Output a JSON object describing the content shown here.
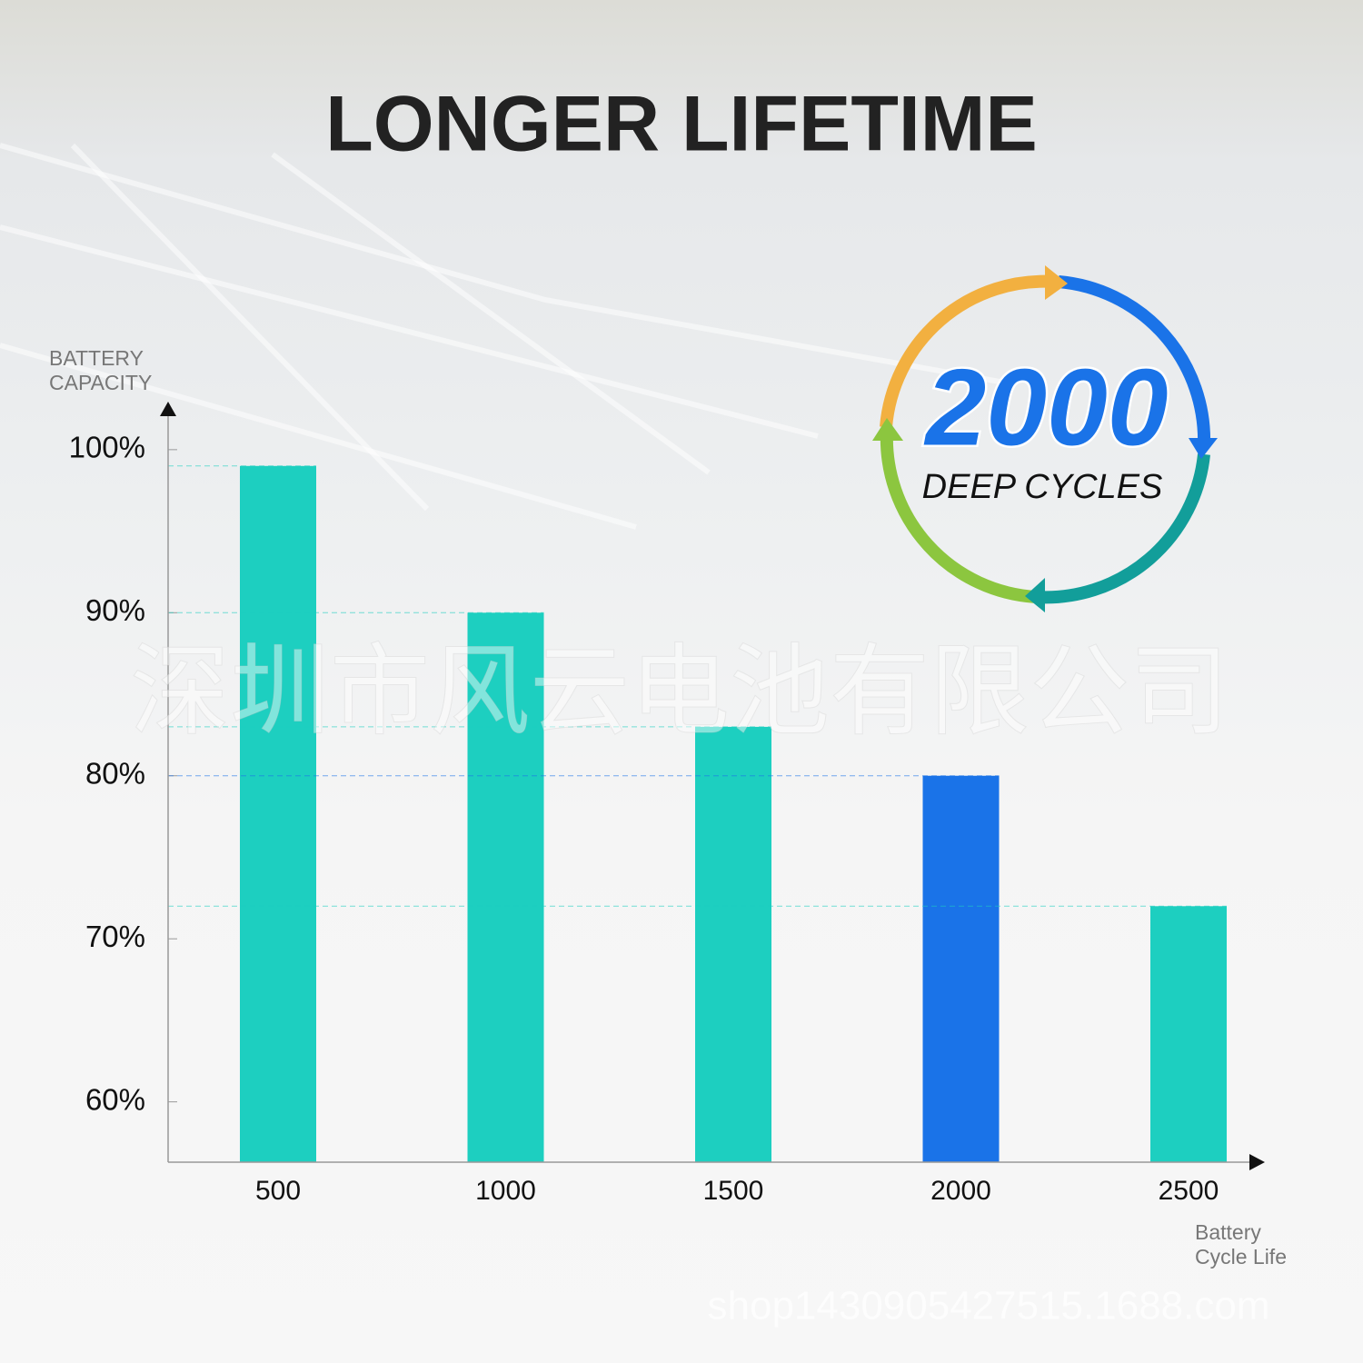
{
  "chart_data": {
    "type": "bar",
    "title": "LONGER LIFETIME",
    "y_label": [
      "BATTERY",
      "CAPACITY"
    ],
    "x_label": [
      "Battery",
      "Cycle Life"
    ],
    "categories": [
      "500",
      "1000",
      "1500",
      "2000",
      "2500"
    ],
    "values": [
      99,
      90,
      83,
      80,
      72
    ],
    "colors": [
      "#1dcfc0",
      "#1dcfc0",
      "#1dcfc0",
      "#1a73e8",
      "#1dcfc0"
    ],
    "ylim": [
      56.3,
      102.5
    ],
    "yticks": [
      {
        "value": 60,
        "label": "60%"
      },
      {
        "value": 70,
        "label": "70%"
      },
      {
        "value": 80,
        "label": "80%"
      },
      {
        "value": 90,
        "label": "90%"
      },
      {
        "value": 100,
        "label": "100%"
      }
    ],
    "badge": {
      "number": "2000",
      "text": "DEEP CYCLES"
    },
    "watermarks": [
      "深圳市风云电池有限公司",
      "shop1430905427515.1688.com"
    ]
  }
}
